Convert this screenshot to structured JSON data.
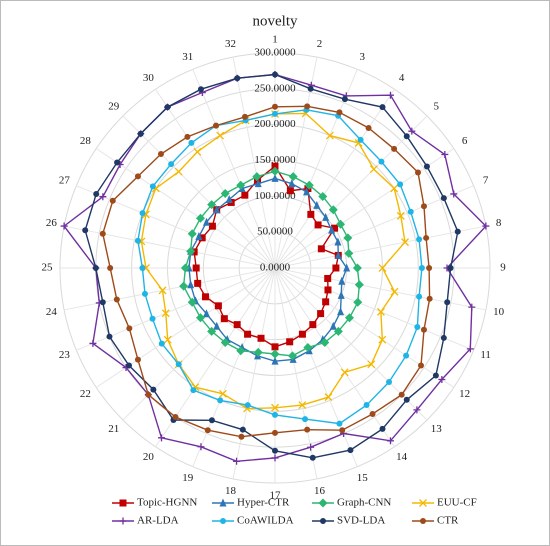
{
  "chart_data": {
    "type": "radar",
    "title": "novelty",
    "categories": [
      "1",
      "2",
      "3",
      "4",
      "5",
      "6",
      "7",
      "8",
      "9",
      "10",
      "11",
      "12",
      "13",
      "14",
      "15",
      "16",
      "17",
      "18",
      "19",
      "20",
      "21",
      "22",
      "23",
      "24",
      "25",
      "26",
      "27",
      "28",
      "29",
      "30",
      "31",
      "32"
    ],
    "ylim": [
      0,
      300
    ],
    "yticks": [
      {
        "value": 0,
        "label": "0.0000"
      },
      {
        "value": 50,
        "label": "50.0000"
      },
      {
        "value": 100,
        "label": "100.0000"
      },
      {
        "value": 150,
        "label": "150.0000"
      },
      {
        "value": 200,
        "label": "200.0000"
      },
      {
        "value": 250,
        "label": "250.0000"
      },
      {
        "value": 300,
        "label": "300.0000"
      }
    ],
    "grid": true,
    "legend": "bottom",
    "series": [
      {
        "name": "Topic-HGNN",
        "color": "#c00000",
        "marker": "square",
        "values": [
          142,
          110,
          120,
          90,
          85,
          100,
          70,
          90,
          85,
          75,
          80,
          85,
          90,
          95,
          100,
          105,
          110,
          100,
          100,
          95,
          100,
          95,
          105,
          110,
          110,
          115,
          110,
          105,
          115,
          110,
          110,
          125
        ]
      },
      {
        "name": "Hyper-CTR",
        "color": "#2e75b6",
        "marker": "triangle",
        "values": [
          125,
          120,
          115,
          105,
          100,
          95,
          95,
          90,
          100,
          95,
          100,
          110,
          115,
          120,
          125,
          130,
          130,
          125,
          120,
          120,
          115,
          115,
          120,
          120,
          120,
          120,
          115,
          115,
          115,
          115,
          120,
          120
        ]
      },
      {
        "name": "Graph-CNN",
        "color": "#2bb673",
        "marker": "diamond",
        "values": [
          135,
          130,
          125,
          120,
          115,
          110,
          110,
          105,
          115,
          120,
          125,
          125,
          125,
          125,
          120,
          125,
          120,
          120,
          125,
          125,
          125,
          125,
          125,
          130,
          125,
          120,
          125,
          125,
          125,
          125,
          125,
          130
        ]
      },
      {
        "name": "EUU-CF",
        "color": "#f5b800",
        "marker": "x",
        "values": [
          215,
          220,
          200,
          210,
          195,
          200,
          190,
          185,
          150,
          170,
          160,
          180,
          190,
          175,
          195,
          195,
          195,
          200,
          190,
          200,
          190,
          180,
          165,
          160,
          180,
          190,
          195,
          200,
          190,
          195,
          200,
          210
        ]
      },
      {
        "name": "AR-LDA",
        "color": "#7030a0",
        "marker": "plus",
        "values": [
          270,
          260,
          260,
          290,
          270,
          285,
          270,
          300,
          240,
          280,
          295,
          280,
          280,
          290,
          250,
          255,
          265,
          275,
          270,
          285,
          250,
          250,
          275,
          250,
          250,
          300,
          260,
          260,
          265,
          270,
          265,
          270
        ]
      },
      {
        "name": "CoAWILDA",
        "color": "#1fb4e6",
        "marker": "circle",
        "values": [
          215,
          225,
          230,
          215,
          210,
          210,
          205,
          205,
          205,
          205,
          215,
          220,
          225,
          230,
          235,
          215,
          205,
          195,
          200,
          205,
          190,
          190,
          185,
          185,
          185,
          195,
          200,
          205,
          205,
          210,
          215,
          210
        ]
      },
      {
        "name": "SVD-LDA",
        "color": "#1f3864",
        "marker": "circle",
        "values": [
          270,
          255,
          255,
          270,
          260,
          255,
          255,
          260,
          245,
          245,
          255,
          270,
          260,
          270,
          275,
          270,
          255,
          230,
          230,
          255,
          240,
          245,
          250,
          245,
          250,
          270,
          270,
          265,
          265,
          270,
          270,
          270
        ]
      },
      {
        "name": "CTR",
        "color": "#9e4a1a",
        "marker": "circle",
        "values": [
          225,
          230,
          235,
          235,
          235,
          240,
          225,
          215,
          215,
          220,
          225,
          245,
          250,
          245,
          245,
          230,
          230,
          240,
          245,
          250,
          250,
          230,
          220,
          225,
          230,
          245,
          245,
          230,
          225,
          220,
          215,
          215
        ]
      }
    ]
  }
}
